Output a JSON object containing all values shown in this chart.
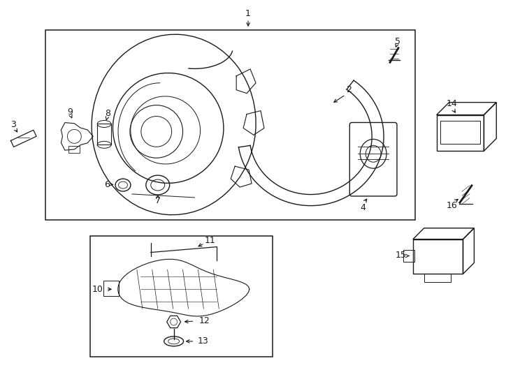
{
  "bg_color": "#ffffff",
  "line_color": "#1a1a1a",
  "fig_width": 7.34,
  "fig_height": 5.4,
  "dpi": 100,
  "lw": 1.0
}
